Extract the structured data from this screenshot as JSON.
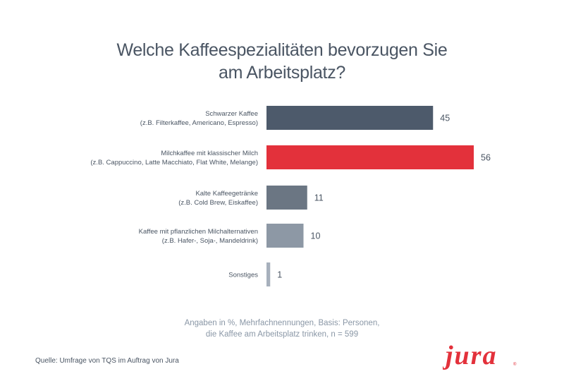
{
  "chart_data": {
    "type": "bar",
    "orientation": "horizontal",
    "title_lines": [
      "Welche Kaffeespezialitäten bevorzugen Sie",
      "am Arbeitsplatz?"
    ],
    "categories": [
      {
        "line1": "Schwarzer Kaffee",
        "line2": "(z.B. Filterkaffee, Americano, Espresso)"
      },
      {
        "line1": "Milchkaffee mit klassischer Milch",
        "line2": "(z.B. Cappuccino, Latte Macchiato, Flat White, Melange)"
      },
      {
        "line1": "Kalte Kaffeegetränke",
        "line2": "(z.B. Cold Brew, Eiskaffee)"
      },
      {
        "line1": "Kaffee mit pflanzlichen Milchalternativen",
        "line2": "(z.B. Hafer-, Soja-, Mandeldrink)"
      },
      {
        "line1": "Sonstiges",
        "line2": ""
      }
    ],
    "values": [
      45,
      56,
      11,
      10,
      1
    ],
    "bar_colors": [
      "#4d5a6b",
      "#e3313b",
      "#6b7683",
      "#8d98a5",
      "#a7b0bc"
    ],
    "xlim": [
      0,
      60
    ],
    "grid": false,
    "legend": "none"
  },
  "note_lines": [
    "Angaben in %, Mehrfachnennungen, Basis: Personen,",
    "die Kaffee am Arbeitsplatz trinken, n = 599"
  ],
  "source": "Quelle: Umfrage von TQS im Auftrag von Jura",
  "logo": {
    "text": "jura",
    "color": "#e3313b"
  }
}
